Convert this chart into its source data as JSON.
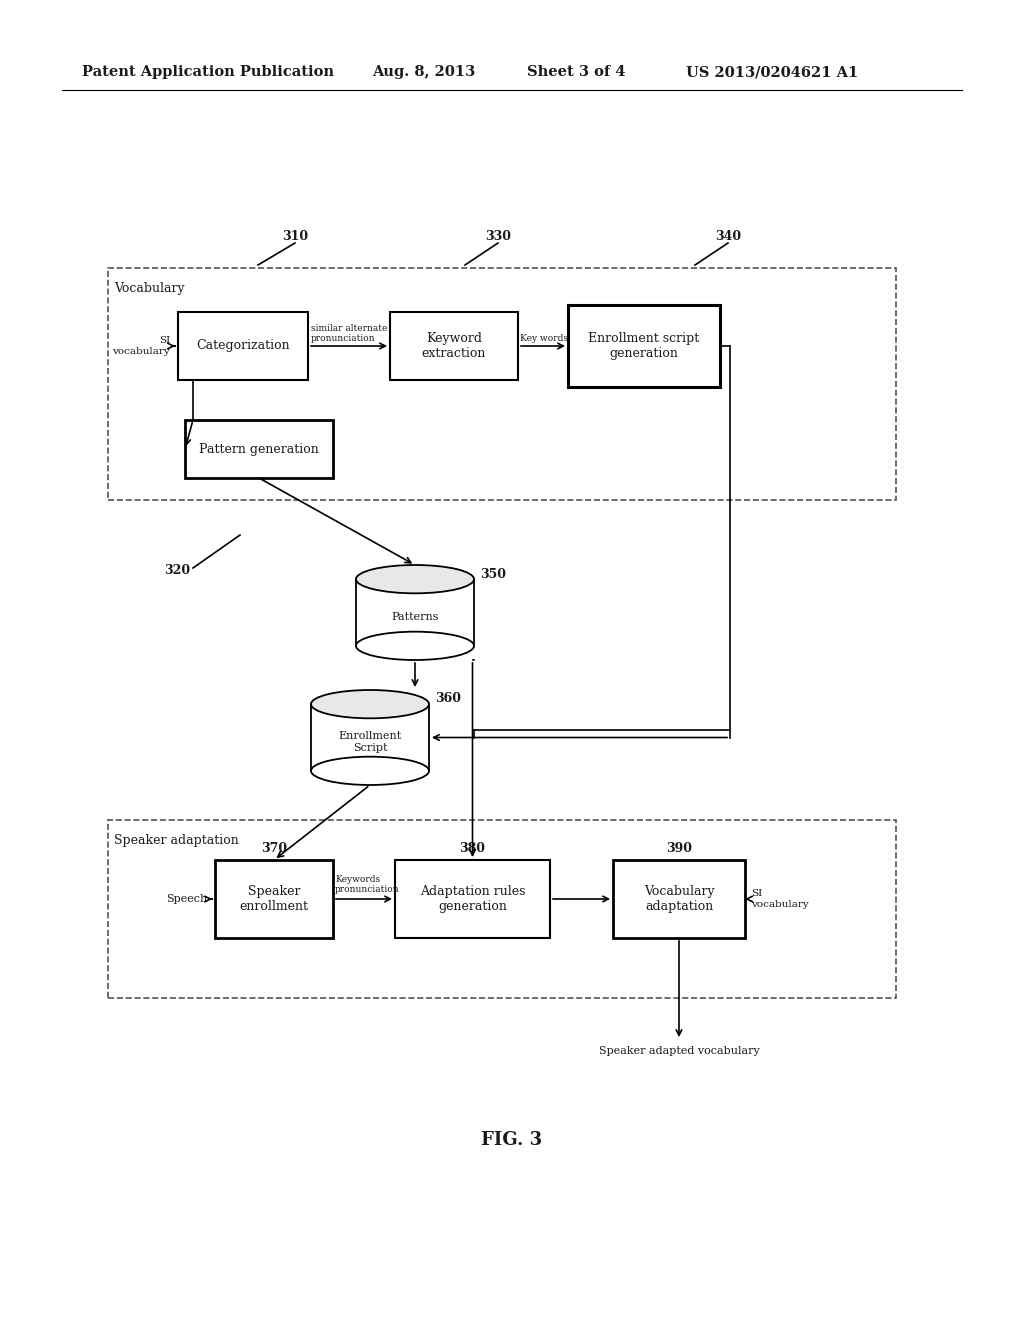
{
  "bg_color": "#ffffff",
  "text_color": "#1a1a1a",
  "header_text": "Patent Application Publication",
  "header_date": "Aug. 8, 2013",
  "header_sheet": "Sheet 3 of 4",
  "header_patent": "US 2013/0204621 A1",
  "fig_label": "FIG. 3"
}
